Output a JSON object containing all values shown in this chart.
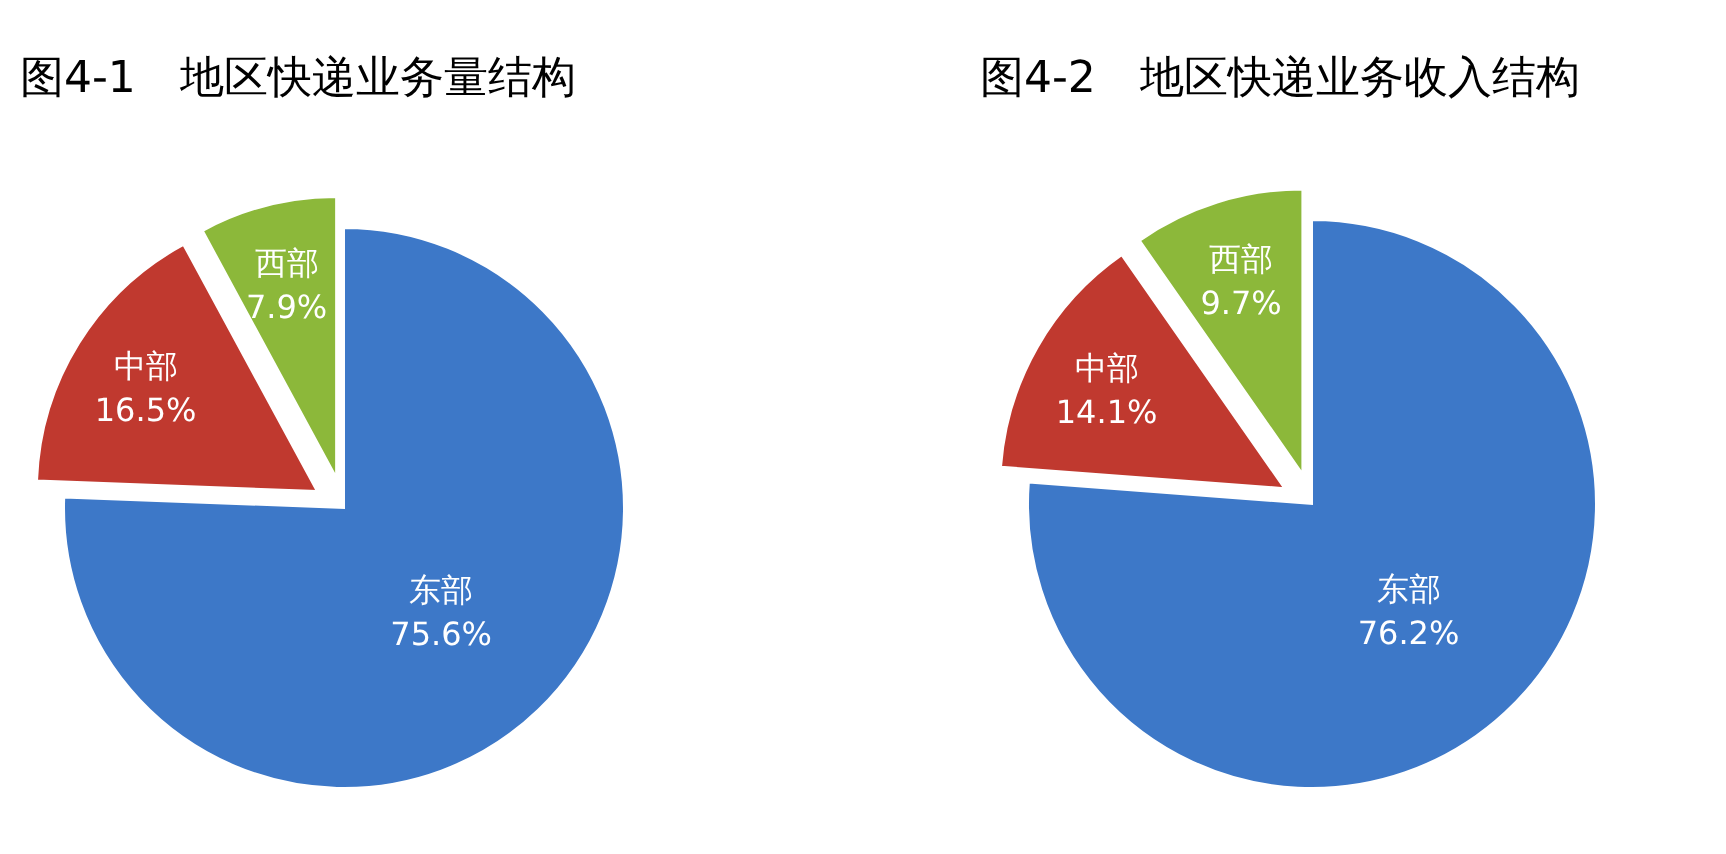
{
  "chart_data": [
    {
      "type": "pie",
      "title": "图4-1　地区快递业务量结构",
      "categories": [
        "东部",
        "中部",
        "西部"
      ],
      "values": [
        75.6,
        16.5,
        7.9
      ],
      "value_labels": [
        "75.6%",
        "16.5%",
        "7.9%"
      ],
      "colors": [
        "#3d78c8",
        "#c0392f",
        "#8cb83a"
      ]
    },
    {
      "type": "pie",
      "title": "图4-2　地区快递业务收入结构",
      "categories": [
        "东部",
        "中部",
        "西部"
      ],
      "values": [
        76.2,
        14.1,
        9.7
      ],
      "value_labels": [
        "76.2%",
        "14.1%",
        "9.7%"
      ],
      "colors": [
        "#3d78c8",
        "#c0392f",
        "#8cb83a"
      ]
    }
  ]
}
